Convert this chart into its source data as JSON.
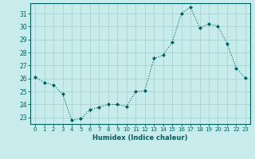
{
  "x": [
    0,
    1,
    2,
    3,
    4,
    5,
    6,
    7,
    8,
    9,
    10,
    11,
    12,
    13,
    14,
    15,
    16,
    17,
    18,
    19,
    20,
    21,
    22,
    23
  ],
  "y": [
    26.1,
    25.7,
    25.5,
    24.8,
    22.8,
    22.9,
    23.6,
    23.8,
    24.0,
    24.0,
    23.85,
    25.0,
    25.05,
    27.55,
    27.8,
    28.8,
    31.0,
    31.5,
    29.9,
    30.2,
    30.05,
    28.7,
    26.8,
    26.05
  ],
  "line_color": "#006060",
  "marker": "D",
  "marker_size": 2,
  "bg_color": "#c8ecec",
  "grid_color": "#a8d4d4",
  "xlabel": "Humidex (Indice chaleur)",
  "xlim": [
    -0.5,
    23.5
  ],
  "ylim": [
    22.5,
    31.8
  ],
  "yticks": [
    23,
    24,
    25,
    26,
    27,
    28,
    29,
    30,
    31
  ],
  "xticks": [
    0,
    1,
    2,
    3,
    4,
    5,
    6,
    7,
    8,
    9,
    10,
    11,
    12,
    13,
    14,
    15,
    16,
    17,
    18,
    19,
    20,
    21,
    22,
    23
  ],
  "tick_color": "#006060",
  "label_color": "#006060",
  "axis_color": "#006060",
  "tick_fontsize": 5,
  "xlabel_fontsize": 6,
  "linewidth": 0.8
}
